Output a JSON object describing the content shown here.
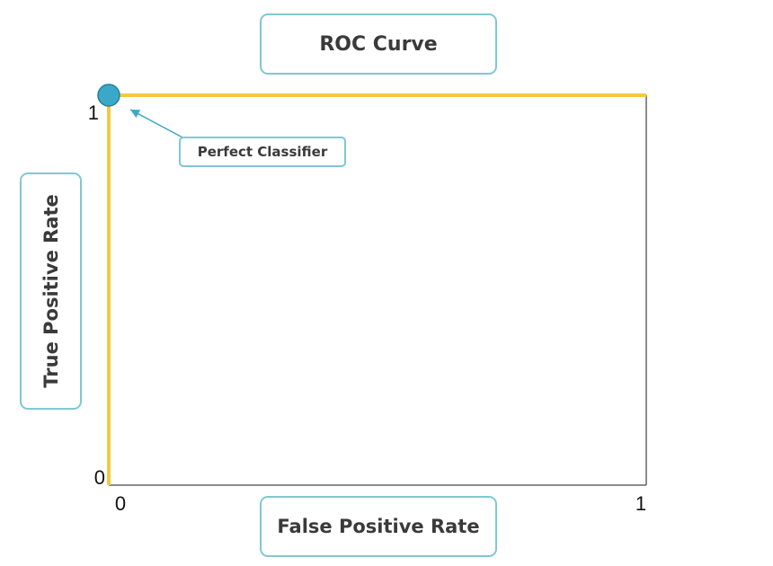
{
  "chart_data": {
    "type": "line",
    "title": "ROC Curve",
    "xlabel": "False Positive Rate",
    "ylabel": "True Positive Rate",
    "xlim": [
      0,
      1
    ],
    "ylim": [
      0,
      1
    ],
    "x_ticks": [
      "0",
      "1"
    ],
    "y_ticks": [
      "0",
      "1"
    ],
    "grid": false,
    "series": [
      {
        "x": [
          0,
          0,
          1
        ],
        "y": [
          0,
          1,
          1
        ],
        "color": "#f5c842"
      }
    ],
    "highlight_point": {
      "x": 0,
      "y": 1,
      "color": "#3aa9c9"
    },
    "annotation": {
      "text": "Perfect Classifier",
      "target": {
        "x": 0,
        "y": 1
      }
    }
  },
  "colors": {
    "box_border": "#80c8d2",
    "axis": "#666666",
    "curve": "#f5c842",
    "point": "#3aa9c9"
  }
}
